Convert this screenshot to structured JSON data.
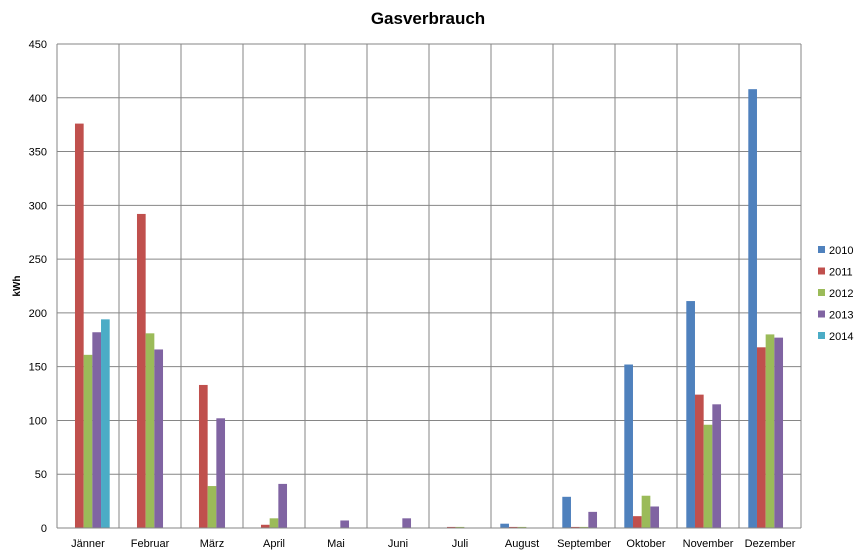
{
  "chart_data": {
    "type": "bar",
    "title": "Gasverbrauch",
    "xlabel": "",
    "ylabel": "kWh",
    "ylim": [
      0,
      450
    ],
    "yticks": [
      0,
      50,
      100,
      150,
      200,
      250,
      300,
      350,
      400,
      450
    ],
    "grid": true,
    "legend_position": "right",
    "categories": [
      "Jänner",
      "Februar",
      "März",
      "April",
      "Mai",
      "Juni",
      "Juli",
      "August",
      "September",
      "Oktober",
      "November",
      "Dezember"
    ],
    "series": [
      {
        "name": "2010",
        "color": "#4F81BD",
        "values": [
          0,
          0,
          0,
          0,
          0,
          0,
          0,
          4,
          29,
          152,
          211,
          408
        ]
      },
      {
        "name": "2011",
        "color": "#C0504D",
        "values": [
          376,
          292,
          133,
          3,
          0,
          0,
          1,
          1,
          1,
          11,
          124,
          168
        ]
      },
      {
        "name": "2012",
        "color": "#9BBB59",
        "values": [
          161,
          181,
          39,
          9,
          0,
          0,
          1,
          1,
          1,
          30,
          96,
          180
        ]
      },
      {
        "name": "2013",
        "color": "#8064A2",
        "values": [
          182,
          166,
          102,
          41,
          7,
          9,
          0,
          0,
          15,
          20,
          115,
          177
        ]
      },
      {
        "name": "2014",
        "color": "#4BACC6",
        "values": [
          194,
          0,
          0,
          0,
          0,
          0,
          0,
          0,
          0,
          0,
          0,
          0
        ]
      }
    ]
  }
}
